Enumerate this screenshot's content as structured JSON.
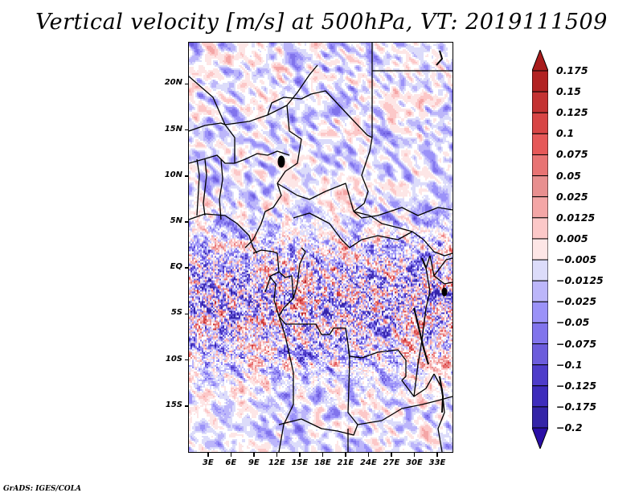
{
  "title": "Vertical velocity [m/s] at 500hPa, VT: 2019111509",
  "credit": "GrADS: IGES/COLA",
  "map": {
    "variable": "Vertical velocity",
    "units": "m/s",
    "level": "500hPa",
    "valid_time": "2019111509",
    "lon_range": [
      0.5,
      35
    ],
    "lat_range": [
      -20,
      24.5
    ],
    "y_axis_labels": [
      {
        "label": "20N",
        "lat": 20
      },
      {
        "label": "15N",
        "lat": 15
      },
      {
        "label": "10N",
        "lat": 10
      },
      {
        "label": "5N",
        "lat": 5
      },
      {
        "label": "EQ",
        "lat": 0
      },
      {
        "label": "5S",
        "lat": -5
      },
      {
        "label": "10S",
        "lat": -10
      },
      {
        "label": "15S",
        "lat": -15
      }
    ],
    "x_axis_labels": [
      {
        "label": "3E",
        "lon": 3
      },
      {
        "label": "6E",
        "lon": 6
      },
      {
        "label": "9E",
        "lon": 9
      },
      {
        "label": "12E",
        "lon": 12
      },
      {
        "label": "15E",
        "lon": 15
      },
      {
        "label": "18E",
        "lon": 18
      },
      {
        "label": "21E",
        "lon": 21
      },
      {
        "label": "24E",
        "lon": 24
      },
      {
        "label": "27E",
        "lon": 27
      },
      {
        "label": "30E",
        "lon": 30
      },
      {
        "label": "33E",
        "lon": 33
      }
    ]
  },
  "colorbar": {
    "levels": [
      {
        "label": "0.175",
        "color": "#b22222"
      },
      {
        "label": "0.15",
        "color": "#c43232"
      },
      {
        "label": "0.125",
        "color": "#d84545"
      },
      {
        "label": "0.1",
        "color": "#e65858"
      },
      {
        "label": "0.075",
        "color": "#e87373"
      },
      {
        "label": "0.05",
        "color": "#e88f8f"
      },
      {
        "label": "0.025",
        "color": "#f4a6a6"
      },
      {
        "label": "0.0125",
        "color": "#fcc8c8"
      },
      {
        "label": "0.005",
        "color": "#fde6e6"
      },
      {
        "label": "-0.005",
        "color": "#ffffff"
      },
      {
        "label": "-0.0125",
        "color": "#dcdcfa"
      },
      {
        "label": "-0.025",
        "color": "#bcb6fa"
      },
      {
        "label": "-0.05",
        "color": "#9b92f8"
      },
      {
        "label": "-0.075",
        "color": "#8174ec"
      },
      {
        "label": "-0.1",
        "color": "#6c5cdc"
      },
      {
        "label": "-0.125",
        "color": "#4e3cca"
      },
      {
        "label": "-0.175",
        "color": "#3e2cbc"
      },
      {
        "label": "-0.2",
        "color": "#3424a8"
      }
    ],
    "top_arrow_color": "#a81c1c",
    "bottom_arrow_color": "#2a0ea6"
  }
}
